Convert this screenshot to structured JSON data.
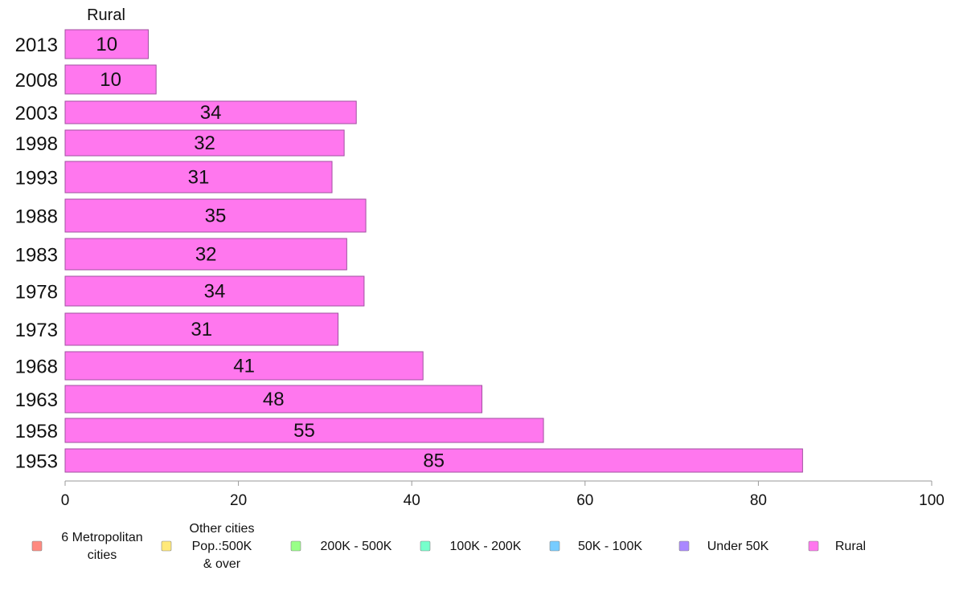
{
  "chart_data": {
    "type": "bar",
    "orientation": "horizontal",
    "series_title": "Rural",
    "categories": [
      "2013",
      "2008",
      "2003",
      "1998",
      "1993",
      "1988",
      "1983",
      "1978",
      "1973",
      "1968",
      "1963",
      "1958",
      "1953"
    ],
    "series": [
      {
        "name": "Rural",
        "color": "#ff77ee",
        "values": [
          9.6,
          10.5,
          33.6,
          32.2,
          30.8,
          34.7,
          32.5,
          34.5,
          31.5,
          41.3,
          48.1,
          55.2,
          85.1
        ],
        "labels": [
          "10",
          "10",
          "34",
          "32",
          "31",
          "35",
          "32",
          "34",
          "31",
          "41",
          "48",
          "55",
          "85"
        ]
      }
    ],
    "xlim": [
      0,
      100
    ],
    "xticks": [
      0,
      20,
      40,
      60,
      80,
      100
    ],
    "grid": false,
    "legend": {
      "placement": "bottom",
      "items": [
        {
          "lines": [
            "6 Metropolitan",
            "cities"
          ],
          "color": "#ff8a80"
        },
        {
          "lines": [
            "Other cities",
            "Pop.:500K",
            "& over"
          ],
          "color": "#ffe97a"
        },
        {
          "lines": [
            "200K - 500K"
          ],
          "color": "#99ff88"
        },
        {
          "lines": [
            "100K - 200K"
          ],
          "color": "#77ffcc"
        },
        {
          "lines": [
            "50K - 100K"
          ],
          "color": "#77ccff"
        },
        {
          "lines": [
            "Under 50K"
          ],
          "color": "#aa88ff"
        },
        {
          "lines": [
            "Rural"
          ],
          "color": "#ff77ee"
        }
      ]
    }
  }
}
